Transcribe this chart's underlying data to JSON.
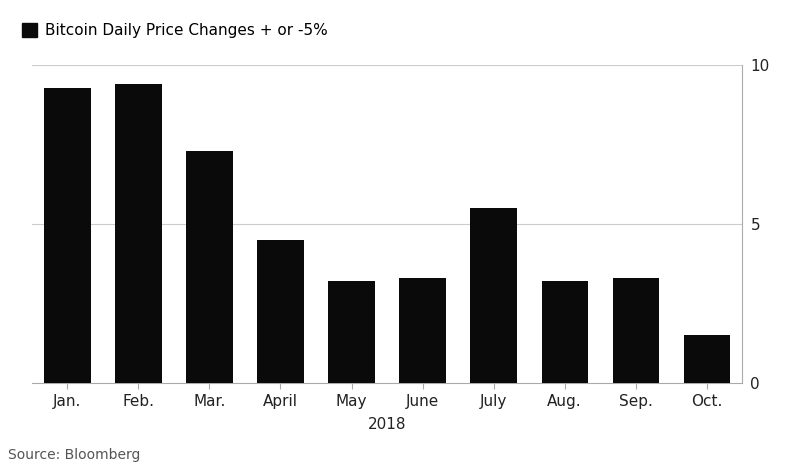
{
  "categories": [
    "Jan.",
    "Feb.",
    "Mar.",
    "April",
    "May",
    "June",
    "July",
    "Aug.",
    "Sep.",
    "Oct."
  ],
  "values": [
    9.3,
    9.4,
    7.3,
    4.5,
    3.2,
    3.3,
    5.5,
    3.2,
    3.3,
    1.5
  ],
  "bar_color": "#0a0a0a",
  "legend_label": "Bitcoin Daily Price Changes + or -5%",
  "xlabel": "2018",
  "ylim": [
    0,
    10
  ],
  "yticks": [
    0,
    5,
    10
  ],
  "source_text": "Source: Bloomberg",
  "background_color": "#ffffff",
  "bar_width": 0.65,
  "grid_color": "#cccccc",
  "label_fontsize": 11,
  "legend_fontsize": 11,
  "source_fontsize": 10,
  "xlabel_fontsize": 11
}
